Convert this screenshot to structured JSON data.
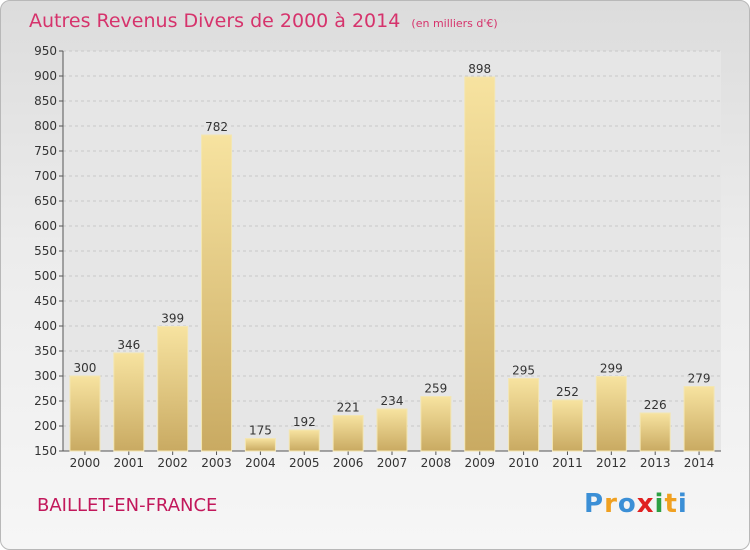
{
  "chart_data": {
    "type": "bar",
    "title": "Autres Revenus Divers de 2000 à 2014",
    "subtitle": "(en milliers d'€)",
    "categories": [
      "2000",
      "2001",
      "2002",
      "2003",
      "2004",
      "2005",
      "2006",
      "2007",
      "2008",
      "2009",
      "2010",
      "2011",
      "2012",
      "2013",
      "2014"
    ],
    "values": [
      300,
      346,
      399,
      782,
      175,
      192,
      221,
      234,
      259,
      898,
      295,
      252,
      299,
      226,
      279
    ],
    "ylim": [
      150,
      950
    ],
    "yticks": [
      150,
      200,
      250,
      300,
      350,
      400,
      450,
      500,
      550,
      600,
      650,
      700,
      750,
      800,
      850,
      900,
      950
    ],
    "grid": true,
    "bar_color": "#e8cf8a"
  },
  "footer": {
    "town": "BAILLET-EN-FRANCE",
    "logo_letters": [
      {
        "char": "P",
        "color": "#3b8fd6"
      },
      {
        "char": "r",
        "color": "#f0a020"
      },
      {
        "char": "o",
        "color": "#3b8fd6"
      },
      {
        "char": "x",
        "color": "#e02020"
      },
      {
        "char": "i",
        "color": "#2ea043"
      },
      {
        "char": "t",
        "color": "#f0a020"
      },
      {
        "char": "i",
        "color": "#3b8fd6"
      }
    ]
  }
}
